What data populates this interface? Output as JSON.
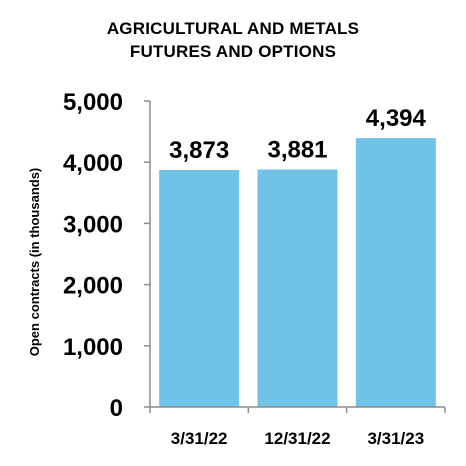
{
  "chart_data": {
    "type": "bar",
    "title_lines": [
      "AGRICULTURAL AND METALS",
      "FUTURES AND OPTIONS"
    ],
    "xlabel": "",
    "ylabel": "Open contracts (in thousands)",
    "categories": [
      "3/31/22",
      "12/31/22",
      "3/31/23"
    ],
    "values": [
      3873,
      3881,
      4394
    ],
    "value_labels": [
      "3,873",
      "3,881",
      "4,394"
    ],
    "ylim": [
      0,
      5000
    ],
    "yticks": [
      0,
      1000,
      2000,
      3000,
      4000,
      5000
    ],
    "ytick_labels": [
      "0",
      "1,000",
      "2,000",
      "3,000",
      "4,000",
      "5,000"
    ],
    "grid": false,
    "legend": "none",
    "bar_color": "#71C2E7",
    "axis_color": "#8C8C8C"
  }
}
